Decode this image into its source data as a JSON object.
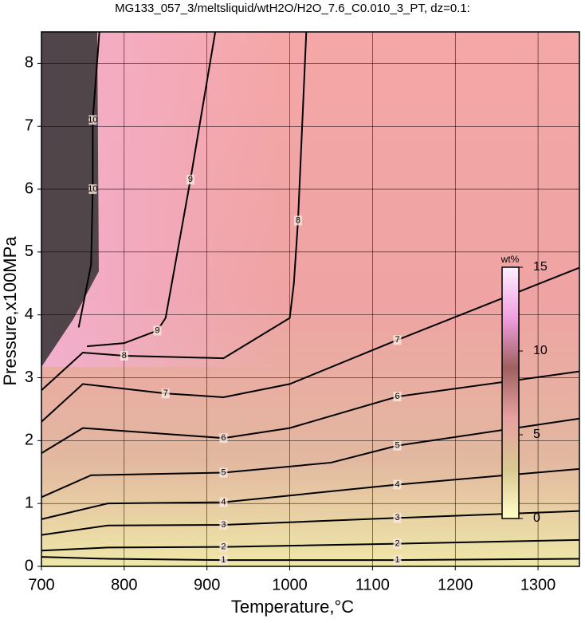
{
  "chart_data": {
    "type": "contour",
    "title": "MG133_057_3/meltsliquid/wtH2O/H2O_7.6_C0.010_3_PT, dz=0.1:",
    "x_label": "Temperature,°C",
    "y_label": "Pressure,x100MPa",
    "xlim": [
      700,
      1350
    ],
    "ylim": [
      0,
      8.5
    ],
    "xticks": [
      700,
      800,
      900,
      1000,
      1100,
      1200,
      1300
    ],
    "yticks": [
      0,
      1,
      2,
      3,
      4,
      5,
      6,
      7,
      8
    ],
    "grid": true,
    "line_color": "#000000",
    "contours": [
      {
        "level": 1,
        "x": [
          700,
          780,
          920,
          1130,
          1350
        ],
        "y": [
          0.15,
          0.12,
          0.1,
          0.1,
          0.12
        ]
      },
      {
        "level": 2,
        "x": [
          700,
          780,
          920,
          1130,
          1350
        ],
        "y": [
          0.25,
          0.3,
          0.31,
          0.36,
          0.42
        ]
      },
      {
        "level": 3,
        "x": [
          700,
          780,
          920,
          1130,
          1350
        ],
        "y": [
          0.5,
          0.65,
          0.66,
          0.77,
          0.88
        ]
      },
      {
        "level": 4,
        "x": [
          700,
          780,
          920,
          1130,
          1350
        ],
        "y": [
          0.75,
          1.0,
          1.02,
          1.3,
          1.55
        ]
      },
      {
        "level": 5,
        "x": [
          700,
          760,
          920,
          1050,
          1130,
          1350
        ],
        "y": [
          1.1,
          1.45,
          1.49,
          1.65,
          1.92,
          2.35
        ]
      },
      {
        "level": 6,
        "x": [
          700,
          750,
          920,
          1000,
          1130,
          1350
        ],
        "y": [
          1.8,
          2.2,
          2.04,
          2.2,
          2.7,
          3.1
        ]
      },
      {
        "level": 7,
        "x": [
          700,
          750,
          850,
          920,
          1000,
          1130,
          1350
        ],
        "y": [
          2.3,
          2.9,
          2.75,
          2.69,
          2.9,
          3.6,
          4.75
        ]
      },
      {
        "level": 8,
        "x": [
          700,
          750,
          800,
          920,
          1000,
          1005,
          1010,
          1020
        ],
        "y": [
          2.8,
          3.4,
          3.35,
          3.31,
          3.95,
          4.5,
          5.5,
          8.5
        ]
      },
      {
        "level": 9,
        "x": [
          755,
          800,
          840,
          850,
          880,
          910
        ],
        "y": [
          3.5,
          3.55,
          3.75,
          3.95,
          6.15,
          8.5
        ]
      },
      {
        "level": 10,
        "x": [
          745,
          760,
          762,
          762,
          770
        ],
        "y": [
          3.8,
          4.8,
          6.0,
          7.1,
          8.5
        ]
      }
    ],
    "colorbar": {
      "label": "wt%",
      "lim": [
        0,
        15
      ],
      "ticks": [
        0,
        5,
        10,
        15
      ],
      "colors": [
        "#ffffc8",
        "#d8c890",
        "#e8a0a0",
        "#a06060",
        "#f0a0e0",
        "#fff0ff"
      ]
    }
  }
}
